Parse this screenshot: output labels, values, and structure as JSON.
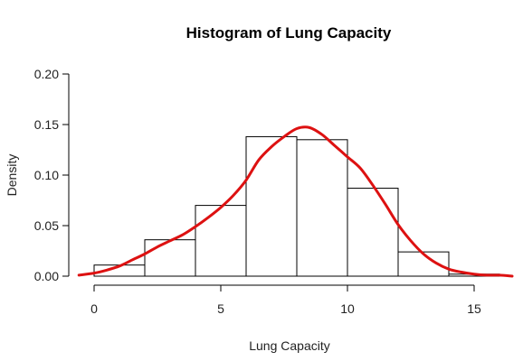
{
  "chart_data": {
    "type": "bar",
    "title": "Histogram of Lung Capacity",
    "xlabel": "Lung Capacity",
    "ylabel": "Density",
    "xlim": [
      -1,
      16.5
    ],
    "ylim": [
      0,
      0.2
    ],
    "x_ticks": [
      0,
      5,
      10,
      15
    ],
    "x_tick_labels": [
      "0",
      "5",
      "10",
      "15"
    ],
    "y_ticks": [
      0,
      0.05,
      0.1,
      0.15,
      0.2
    ],
    "y_tick_labels": [
      "0.00",
      "0.05",
      "0.10",
      "0.15",
      "0.20"
    ],
    "bins": [
      {
        "x0": 0,
        "x1": 2,
        "density": 0.011
      },
      {
        "x0": 2,
        "x1": 4,
        "density": 0.036
      },
      {
        "x0": 4,
        "x1": 6,
        "density": 0.07
      },
      {
        "x0": 6,
        "x1": 8,
        "density": 0.138
      },
      {
        "x0": 8,
        "x1": 10,
        "density": 0.135
      },
      {
        "x0": 10,
        "x1": 12,
        "density": 0.087
      },
      {
        "x0": 12,
        "x1": 14,
        "density": 0.024
      },
      {
        "x0": 14,
        "x1": 16,
        "density": 0.002
      }
    ],
    "density_curve": {
      "x": [
        -0.6,
        0,
        0.5,
        1,
        1.5,
        2,
        2.5,
        3,
        3.5,
        4,
        4.5,
        5,
        5.5,
        6,
        6.5,
        7,
        7.5,
        8,
        8.5,
        9,
        9.5,
        10,
        10.5,
        11,
        11.5,
        12,
        12.5,
        13,
        13.5,
        14,
        14.5,
        15,
        15.5,
        16,
        16.5
      ],
      "y": [
        0.001,
        0.003,
        0.006,
        0.01,
        0.016,
        0.022,
        0.029,
        0.035,
        0.041,
        0.049,
        0.058,
        0.068,
        0.08,
        0.095,
        0.115,
        0.128,
        0.138,
        0.146,
        0.147,
        0.14,
        0.129,
        0.118,
        0.107,
        0.09,
        0.071,
        0.051,
        0.035,
        0.022,
        0.013,
        0.007,
        0.004,
        0.002,
        0.001,
        0.001,
        0.0
      ]
    },
    "colors": {
      "bars_fill": "#ffffff",
      "bars_stroke": "#000000",
      "curve": "#dd1111"
    },
    "grid": false
  }
}
